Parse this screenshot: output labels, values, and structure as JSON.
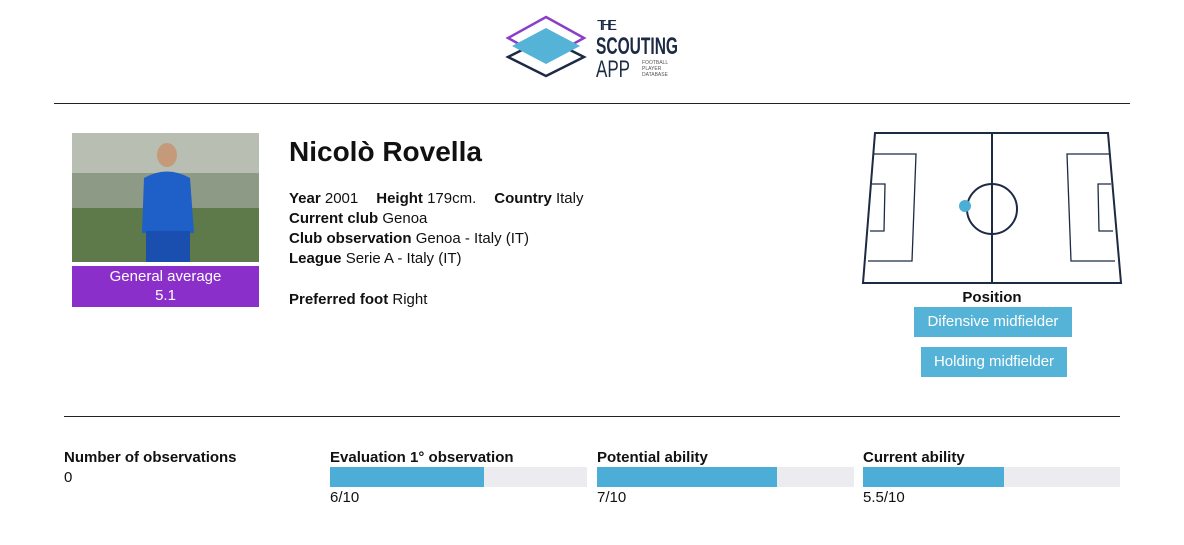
{
  "header": {
    "logo": {
      "line1": "THE",
      "line2": "SCOUTING",
      "line3": "APP",
      "tagline": [
        "FOOTBALL",
        "PLAYER",
        "DATABASE"
      ]
    }
  },
  "player": {
    "name": "Nicolò Rovella",
    "general_average": {
      "label": "General average",
      "value": 5.1
    },
    "info_lines": [
      [
        {
          "label": "Year",
          "value": "2001"
        },
        {
          "label": "Height",
          "value": "179cm."
        },
        {
          "label": "Country",
          "value": "Italy"
        }
      ],
      [
        {
          "label": "Current club",
          "value": "Genoa"
        }
      ],
      [
        {
          "label": "Club observation",
          "value": "Genoa - Italy (IT)"
        }
      ],
      [
        {
          "label": "League",
          "value": "Serie A - Italy (IT)"
        }
      ]
    ],
    "preferred_foot": {
      "label": "Preferred foot",
      "value": "Right"
    }
  },
  "position": {
    "label": "Position",
    "roles": [
      "Difensive midfielder",
      "Holding midfielder"
    ]
  },
  "stats": {
    "observations": {
      "label": "Number of observations",
      "value": 0
    },
    "evaluations": [
      {
        "label": "Evaluation 1° observation",
        "score": {
          "value": 6,
          "max": 10,
          "label": "6/10"
        }
      },
      {
        "label": "Potential ability",
        "score": {
          "value": 7,
          "max": 10,
          "label": "7/10"
        }
      },
      {
        "label": "Current ability",
        "score": {
          "value": 5.5,
          "max": 10,
          "label": "5.5/10"
        }
      }
    ]
  }
}
